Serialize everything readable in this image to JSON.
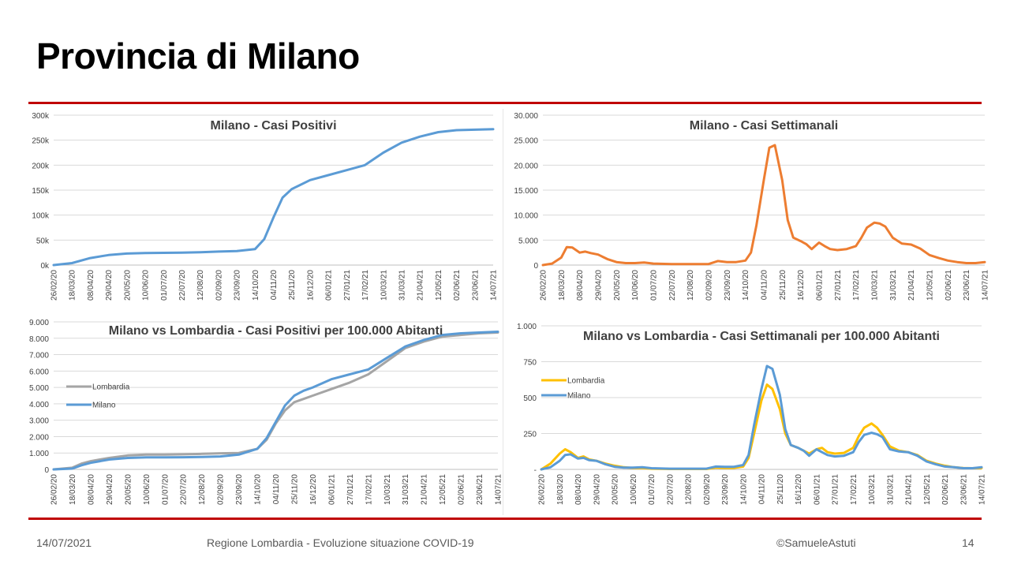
{
  "slide": {
    "title": "Provincia di Milano",
    "accent_color": "#C00000",
    "footer": {
      "date": "14/07/2021",
      "center": "Regione Lombardia - Evoluzione situazione COVID-19",
      "author": "©SamueleAstuti",
      "page": "14"
    }
  },
  "chart_data": [
    {
      "type": "line",
      "title": "Milano - Casi Positivi",
      "x_labels": [
        "26/02/20",
        "18/03/20",
        "08/04/20",
        "29/04/20",
        "20/05/20",
        "10/06/20",
        "01/07/20",
        "22/07/20",
        "12/08/20",
        "02/09/20",
        "23/09/20",
        "14/10/20",
        "04/11/20",
        "25/11/20",
        "16/12/20",
        "06/01/21",
        "27/01/21",
        "17/02/21",
        "10/03/21",
        "31/03/21",
        "21/04/21",
        "12/05/21",
        "02/06/21",
        "23/06/21",
        "14/07/21"
      ],
      "y_ticks": [
        "0k",
        "50k",
        "100k",
        "150k",
        "200k",
        "250k",
        "300k"
      ],
      "ylim": [
        0,
        300000
      ],
      "grid": true,
      "series": [
        {
          "color": "#5B9BD5",
          "x": [
            0,
            1,
            2,
            3,
            4,
            5,
            6,
            7,
            8,
            9,
            10,
            11,
            11.5,
            12,
            12.5,
            13,
            14,
            15,
            16,
            17,
            18,
            19,
            20,
            21,
            22,
            23,
            24
          ],
          "values": [
            0,
            4000,
            14000,
            20000,
            23000,
            24000,
            24500,
            25000,
            25500,
            27000,
            28000,
            32000,
            52000,
            95000,
            135000,
            152000,
            170000,
            180000,
            190000,
            200000,
            225000,
            245000,
            257000,
            266000,
            270000,
            271000,
            272000
          ]
        }
      ]
    },
    {
      "type": "line",
      "title": "Milano - Casi Settimanali",
      "x_labels": [
        "26/02/20",
        "18/03/20",
        "08/04/20",
        "29/04/20",
        "20/05/20",
        "10/06/20",
        "01/07/20",
        "22/07/20",
        "12/08/20",
        "02/09/20",
        "23/09/20",
        "14/10/20",
        "04/11/20",
        "25/11/20",
        "16/12/20",
        "06/01/21",
        "27/01/21",
        "17/02/21",
        "10/03/21",
        "31/03/21",
        "21/04/21",
        "12/05/21",
        "02/06/21",
        "23/06/21",
        "14/07/21"
      ],
      "y_ticks": [
        "0",
        "5.000",
        "10.000",
        "15.000",
        "20.000",
        "25.000",
        "30.000"
      ],
      "ylim": [
        0,
        30000
      ],
      "grid": true,
      "series": [
        {
          "color": "#ED7D31",
          "x": [
            0,
            0.5,
            1,
            1.3,
            1.6,
            2,
            2.3,
            2.6,
            3,
            3.5,
            4,
            4.5,
            5,
            5.5,
            6,
            7,
            8,
            9,
            9.5,
            10,
            10.5,
            11,
            11.3,
            11.6,
            12,
            12.3,
            12.6,
            13,
            13.3,
            13.6,
            14,
            14.3,
            14.6,
            15,
            15.3,
            15.6,
            16,
            16.5,
            17,
            17.3,
            17.6,
            18,
            18.3,
            18.6,
            19,
            19.5,
            20,
            20.5,
            21,
            21.5,
            22,
            22.5,
            23,
            23.5,
            24
          ],
          "values": [
            0,
            300,
            1500,
            3600,
            3500,
            2500,
            2700,
            2400,
            2100,
            1200,
            600,
            400,
            400,
            500,
            300,
            200,
            200,
            200,
            800,
            600,
            600,
            900,
            2500,
            8000,
            17000,
            23500,
            24000,
            17000,
            9000,
            5500,
            4800,
            4200,
            3200,
            4500,
            3800,
            3200,
            3000,
            3200,
            3800,
            5500,
            7500,
            8500,
            8300,
            7700,
            5500,
            4300,
            4100,
            3300,
            2000,
            1400,
            900,
            600,
            400,
            400,
            600
          ]
        }
      ]
    },
    {
      "type": "line",
      "title": "Milano vs Lombardia - Casi Positivi per 100.000 Abitanti",
      "x_labels": [
        "26/02/20",
        "18/03/20",
        "08/04/20",
        "29/04/20",
        "20/05/20",
        "10/06/20",
        "01/07/20",
        "22/07/20",
        "12/08/20",
        "02/09/20",
        "23/09/20",
        "14/10/20",
        "04/11/20",
        "25/11/20",
        "16/12/20",
        "06/01/21",
        "27/01/21",
        "17/02/21",
        "10/03/21",
        "31/03/21",
        "21/04/21",
        "12/05/21",
        "02/06/21",
        "23/06/21",
        "14/07/21"
      ],
      "y_ticks": [
        "0",
        "1.000",
        "2.000",
        "3.000",
        "4.000",
        "5.000",
        "6.000",
        "7.000",
        "8.000",
        "9.000"
      ],
      "ylim": [
        0,
        9000
      ],
      "grid": true,
      "legend": "left",
      "series": [
        {
          "name": "Lombardia",
          "color": "#A5A5A5",
          "x": [
            0,
            1,
            1.5,
            2,
            2.5,
            3,
            4,
            5,
            6,
            7,
            8,
            9,
            10,
            11,
            11.5,
            12,
            12.5,
            13,
            13.5,
            14,
            15,
            16,
            17,
            18,
            19,
            20,
            21,
            22,
            23,
            24
          ],
          "values": [
            0,
            100,
            350,
            500,
            600,
            700,
            850,
            900,
            900,
            920,
            950,
            980,
            1000,
            1250,
            1800,
            2800,
            3600,
            4100,
            4300,
            4500,
            4900,
            5300,
            5800,
            6600,
            7400,
            7800,
            8100,
            8200,
            8300,
            8350
          ]
        },
        {
          "name": "Milano",
          "color": "#5B9BD5",
          "x": [
            0,
            1,
            1.5,
            2,
            2.5,
            3,
            4,
            5,
            6,
            7,
            8,
            9,
            10,
            11,
            11.5,
            12,
            12.5,
            13,
            13.5,
            14,
            15,
            16,
            17,
            18,
            19,
            20,
            21,
            22,
            23,
            24
          ],
          "values": [
            0,
            50,
            250,
            400,
            500,
            600,
            700,
            730,
            730,
            740,
            760,
            790,
            900,
            1250,
            1900,
            2900,
            3900,
            4500,
            4800,
            5000,
            5500,
            5800,
            6100,
            6800,
            7500,
            7900,
            8200,
            8300,
            8350,
            8400
          ]
        }
      ]
    },
    {
      "type": "line",
      "title": "Milano vs Lombardia - Casi Settimanali per 100.000 Abitanti",
      "x_labels": [
        "26/02/20",
        "18/03/20",
        "08/04/20",
        "29/04/20",
        "20/05/20",
        "10/06/20",
        "01/07/20",
        "22/07/20",
        "12/08/20",
        "02/09/20",
        "23/09/20",
        "14/10/20",
        "04/11/20",
        "25/11/20",
        "16/12/20",
        "06/01/21",
        "27/01/21",
        "17/02/21",
        "10/03/21",
        "31/03/21",
        "21/04/21",
        "12/05/21",
        "02/06/21",
        "23/06/21",
        "14/07/21"
      ],
      "y_ticks": [
        "-",
        "250",
        "500",
        "750",
        "1.000"
      ],
      "ylim": [
        0,
        1000
      ],
      "grid": true,
      "legend": "left",
      "series": [
        {
          "name": "Lombardia",
          "color": "#FFC000",
          "x": [
            0,
            0.5,
            1,
            1.3,
            1.6,
            2,
            2.3,
            2.6,
            3,
            3.5,
            4,
            4.5,
            5,
            5.5,
            6,
            7,
            8,
            9,
            9.5,
            10,
            10.5,
            11,
            11.3,
            11.6,
            12,
            12.3,
            12.6,
            13,
            13.3,
            13.6,
            14,
            14.3,
            14.6,
            15,
            15.3,
            15.6,
            16,
            16.5,
            17,
            17.3,
            17.6,
            18,
            18.3,
            18.6,
            19,
            19.5,
            20,
            20.5,
            21,
            21.5,
            22,
            22.5,
            23,
            23.5,
            24
          ],
          "values": [
            0,
            40,
            110,
            140,
            120,
            80,
            90,
            70,
            60,
            40,
            25,
            15,
            10,
            10,
            5,
            3,
            3,
            3,
            12,
            10,
            10,
            20,
            80,
            250,
            480,
            590,
            560,
            420,
            250,
            170,
            150,
            130,
            110,
            140,
            150,
            120,
            110,
            115,
            150,
            230,
            290,
            320,
            290,
            240,
            160,
            130,
            120,
            100,
            60,
            40,
            25,
            15,
            10,
            8,
            10
          ]
        },
        {
          "name": "Milano",
          "color": "#5B9BD5",
          "x": [
            0,
            0.5,
            1,
            1.3,
            1.6,
            2,
            2.3,
            2.6,
            3,
            3.5,
            4,
            4.5,
            5,
            5.5,
            6,
            7,
            8,
            9,
            9.5,
            10,
            10.5,
            11,
            11.3,
            11.6,
            12,
            12.3,
            12.6,
            13,
            13.3,
            13.6,
            14,
            14.3,
            14.6,
            15,
            15.3,
            15.6,
            16,
            16.5,
            17,
            17.3,
            17.6,
            18,
            18.3,
            18.6,
            19,
            19.5,
            20,
            20.5,
            21,
            21.5,
            22,
            22.5,
            23,
            23.5,
            24
          ],
          "values": [
            0,
            15,
            60,
            100,
            105,
            75,
            80,
            65,
            60,
            35,
            18,
            12,
            12,
            15,
            8,
            5,
            5,
            5,
            20,
            18,
            18,
            30,
            100,
            310,
            560,
            720,
            700,
            520,
            280,
            170,
            150,
            130,
            95,
            140,
            120,
            100,
            90,
            95,
            120,
            190,
            240,
            255,
            245,
            225,
            140,
            125,
            120,
            95,
            55,
            35,
            20,
            15,
            8,
            8,
            15
          ]
        }
      ]
    }
  ]
}
